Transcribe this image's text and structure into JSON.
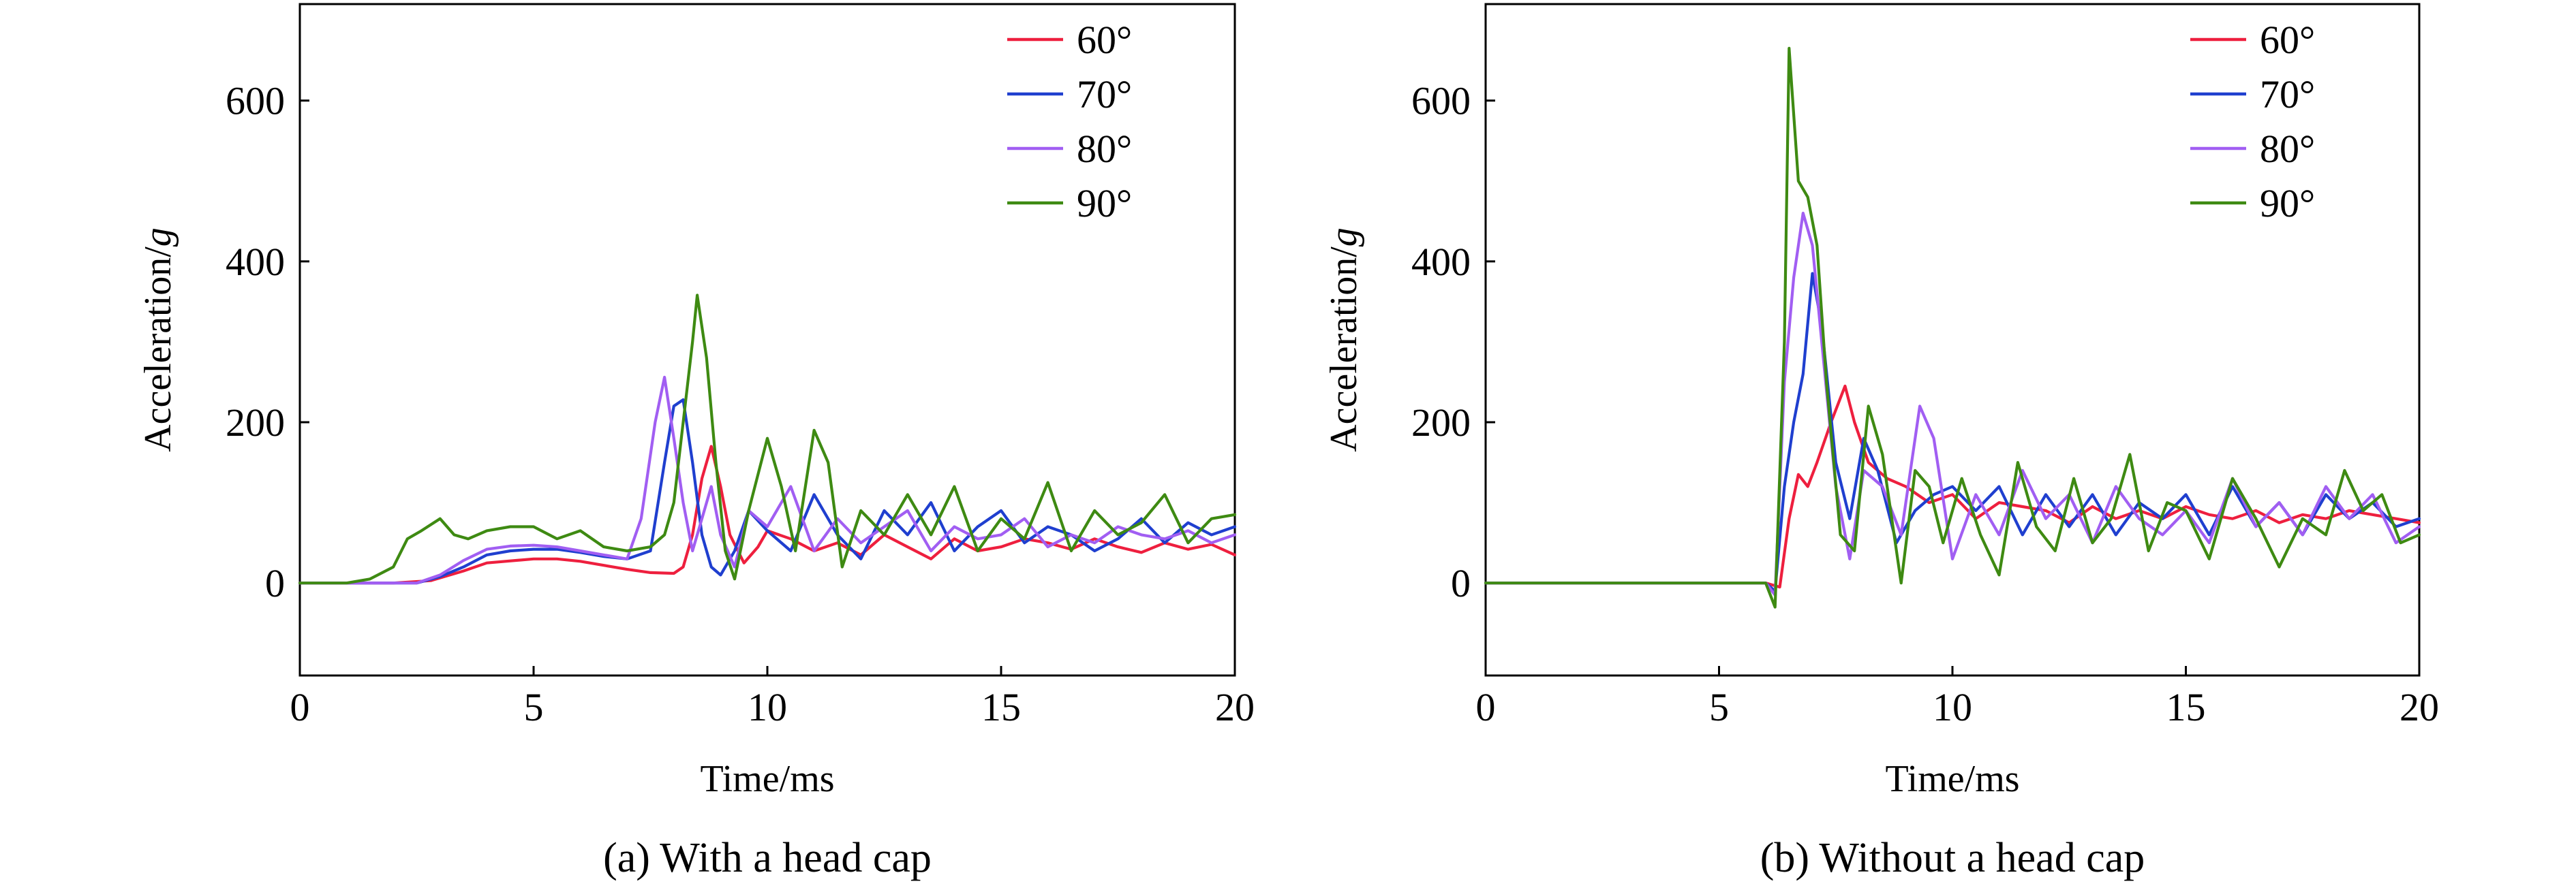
{
  "colors": {
    "60°": "#ee1f3e",
    "70°": "#1f3fcf",
    "80°": "#a15ef2",
    "90°": "#3e8a12"
  },
  "chart_data": [
    {
      "type": "line",
      "caption": "(a) With a head cap",
      "xlabel": "Time/ms",
      "ylabel_main": "Acceleration/",
      "ylabel_unit": "g",
      "xlim": [
        0,
        20
      ],
      "ylim": [
        -115,
        720
      ],
      "xticks": [
        0,
        5,
        10,
        15,
        20
      ],
      "yticks": [
        0,
        200,
        400,
        600
      ],
      "legend": "top-right",
      "series": [
        {
          "name": "60°",
          "color": "#ee1f3e",
          "x": [
            0,
            1,
            2,
            2.8,
            3.5,
            4,
            5,
            5.5,
            6,
            6.5,
            7,
            7.5,
            8,
            8.2,
            8.4,
            8.6,
            8.8,
            9,
            9.2,
            9.5,
            9.8,
            10,
            10.5,
            11,
            11.5,
            12,
            12.5,
            13,
            13.5,
            14,
            14.5,
            15,
            15.5,
            16,
            16.5,
            17,
            17.5,
            18,
            18.5,
            19,
            19.5,
            20
          ],
          "y": [
            0,
            0,
            0,
            3,
            15,
            25,
            30,
            30,
            27,
            22,
            17,
            13,
            12,
            20,
            60,
            130,
            170,
            120,
            60,
            25,
            45,
            65,
            55,
            40,
            50,
            35,
            60,
            45,
            30,
            55,
            40,
            45,
            55,
            50,
            42,
            55,
            45,
            38,
            50,
            42,
            48,
            35
          ]
        },
        {
          "name": "70°",
          "color": "#1f3fcf",
          "x": [
            0,
            1,
            2,
            2.5,
            3,
            3.5,
            4,
            4.5,
            5,
            5.5,
            6,
            6.5,
            7,
            7.5,
            7.8,
            8,
            8.2,
            8.4,
            8.6,
            8.8,
            9,
            9.3,
            9.6,
            10,
            10.5,
            11,
            11.5,
            12,
            12.5,
            13,
            13.5,
            14,
            14.5,
            15,
            15.5,
            16,
            16.5,
            17,
            17.5,
            18,
            18.5,
            19,
            19.5,
            20
          ],
          "y": [
            0,
            0,
            0,
            0,
            8,
            20,
            35,
            40,
            42,
            42,
            38,
            33,
            30,
            40,
            150,
            220,
            228,
            150,
            60,
            20,
            10,
            40,
            90,
            65,
            40,
            110,
            60,
            30,
            90,
            60,
            100,
            40,
            70,
            90,
            50,
            70,
            60,
            40,
            55,
            80,
            50,
            75,
            60,
            70
          ]
        },
        {
          "name": "80°",
          "color": "#a15ef2",
          "x": [
            0,
            1,
            2,
            2.5,
            3,
            3.5,
            4,
            4.5,
            5,
            5.5,
            6,
            6.5,
            7,
            7.3,
            7.6,
            7.8,
            8,
            8.2,
            8.4,
            8.6,
            8.8,
            9,
            9.3,
            9.6,
            10,
            10.5,
            11,
            11.5,
            12,
            12.5,
            13,
            13.5,
            14,
            14.5,
            15,
            15.5,
            16,
            16.5,
            17,
            17.5,
            18,
            18.5,
            19,
            19.5,
            20
          ],
          "y": [
            0,
            0,
            0,
            0,
            10,
            28,
            42,
            46,
            47,
            45,
            40,
            35,
            30,
            80,
            200,
            256,
            180,
            100,
            40,
            80,
            120,
            60,
            20,
            90,
            70,
            120,
            40,
            80,
            50,
            70,
            90,
            40,
            70,
            55,
            60,
            80,
            45,
            60,
            50,
            70,
            60,
            55,
            65,
            50,
            60
          ]
        },
        {
          "name": "90°",
          "color": "#3e8a12",
          "x": [
            0,
            1,
            1.5,
            2,
            2.3,
            2.6,
            3,
            3.3,
            3.6,
            4,
            4.5,
            5,
            5.5,
            6,
            6.5,
            7,
            7.5,
            7.8,
            8,
            8.2,
            8.4,
            8.5,
            8.7,
            8.9,
            9.1,
            9.3,
            9.6,
            10,
            10.3,
            10.6,
            11,
            11.3,
            11.6,
            12,
            12.5,
            13,
            13.5,
            14,
            14.5,
            15,
            15.5,
            16,
            16.5,
            17,
            17.5,
            18,
            18.5,
            19,
            19.5,
            20
          ],
          "y": [
            0,
            0,
            5,
            20,
            55,
            65,
            80,
            60,
            55,
            65,
            70,
            70,
            55,
            65,
            45,
            40,
            45,
            60,
            100,
            200,
            300,
            358,
            280,
            150,
            40,
            5,
            90,
            180,
            120,
            40,
            190,
            150,
            20,
            90,
            60,
            110,
            60,
            120,
            40,
            80,
            55,
            125,
            40,
            90,
            60,
            75,
            110,
            50,
            80,
            85
          ]
        }
      ]
    },
    {
      "type": "line",
      "caption": "(b) Without a head cap",
      "xlabel": "Time/ms",
      "ylabel_main": "Acceleration/",
      "ylabel_unit": "g",
      "xlim": [
        0,
        20
      ],
      "ylim": [
        -115,
        720
      ],
      "xticks": [
        0,
        5,
        10,
        15,
        20
      ],
      "yticks": [
        0,
        200,
        400,
        600
      ],
      "legend": "top-right",
      "series": [
        {
          "name": "60°",
          "color": "#ee1f3e",
          "x": [
            0,
            6,
            6.3,
            6.5,
            6.7,
            6.9,
            7.1,
            7.4,
            7.7,
            7.9,
            8.2,
            8.6,
            9,
            9.5,
            10,
            10.5,
            11,
            11.5,
            12,
            12.5,
            13,
            13.5,
            14,
            14.5,
            15,
            15.5,
            16,
            16.5,
            17,
            17.5,
            18,
            18.5,
            19,
            19.5,
            20
          ],
          "y": [
            0,
            0,
            -5,
            80,
            135,
            120,
            150,
            200,
            245,
            200,
            150,
            130,
            120,
            100,
            110,
            80,
            100,
            95,
            90,
            75,
            95,
            80,
            90,
            80,
            95,
            85,
            80,
            90,
            75,
            85,
            80,
            90,
            85,
            80,
            75
          ]
        },
        {
          "name": "70°",
          "color": "#1f3fcf",
          "x": [
            0,
            6,
            6.2,
            6.4,
            6.6,
            6.8,
            7,
            7.2,
            7.5,
            7.8,
            8.1,
            8.4,
            8.8,
            9.2,
            9.6,
            10,
            10.5,
            11,
            11.5,
            12,
            12.5,
            13,
            13.5,
            14,
            14.5,
            15,
            15.5,
            16,
            16.5,
            17,
            17.5,
            18,
            18.5,
            19,
            19.5,
            20
          ],
          "y": [
            0,
            0,
            -10,
            120,
            200,
            260,
            385,
            320,
            150,
            80,
            180,
            140,
            50,
            90,
            110,
            120,
            90,
            120,
            60,
            110,
            70,
            110,
            60,
            100,
            80,
            110,
            60,
            120,
            70,
            100,
            60,
            110,
            80,
            100,
            70,
            80
          ]
        },
        {
          "name": "80°",
          "color": "#a15ef2",
          "x": [
            0,
            6,
            6.2,
            6.4,
            6.6,
            6.8,
            7,
            7.2,
            7.5,
            7.8,
            8.1,
            8.5,
            8.9,
            9.3,
            9.6,
            10,
            10.5,
            11,
            11.5,
            12,
            12.5,
            13,
            13.5,
            14,
            14.5,
            15,
            15.5,
            16,
            16.5,
            17,
            17.5,
            18,
            18.5,
            19,
            19.5,
            20
          ],
          "y": [
            0,
            0,
            -15,
            250,
            380,
            460,
            420,
            300,
            120,
            30,
            140,
            120,
            60,
            220,
            180,
            30,
            110,
            60,
            140,
            80,
            110,
            50,
            120,
            80,
            60,
            90,
            50,
            130,
            70,
            100,
            60,
            120,
            80,
            110,
            50,
            70
          ]
        },
        {
          "name": "90°",
          "color": "#3e8a12",
          "x": [
            0,
            6,
            6.2,
            6.4,
            6.5,
            6.7,
            6.9,
            7.1,
            7.3,
            7.6,
            7.9,
            8.2,
            8.5,
            8.9,
            9.2,
            9.5,
            9.8,
            10.2,
            10.6,
            11,
            11.4,
            11.8,
            12.2,
            12.6,
            13,
            13.4,
            13.8,
            14.2,
            14.6,
            15,
            15.5,
            16,
            16.5,
            17,
            17.5,
            18,
            18.4,
            18.8,
            19.2,
            19.6,
            20
          ],
          "y": [
            0,
            0,
            -30,
            300,
            665,
            500,
            480,
            420,
            250,
            60,
            40,
            220,
            160,
            0,
            140,
            120,
            50,
            130,
            60,
            10,
            150,
            70,
            40,
            130,
            50,
            80,
            160,
            40,
            100,
            90,
            30,
            130,
            80,
            20,
            80,
            60,
            140,
            90,
            110,
            50,
            60
          ]
        }
      ]
    }
  ]
}
